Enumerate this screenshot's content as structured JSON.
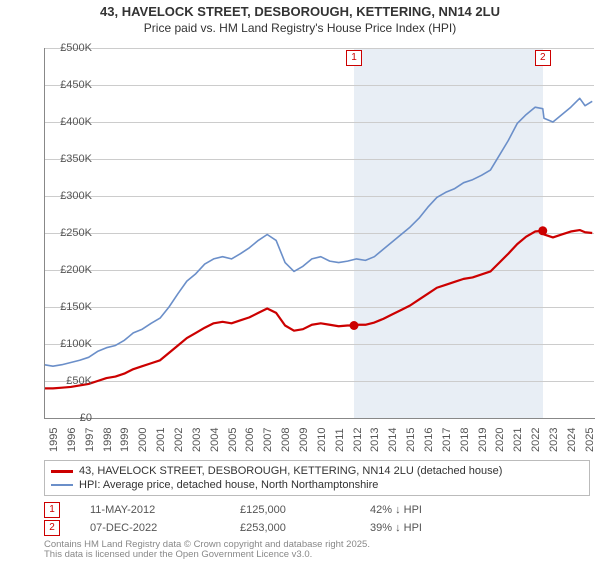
{
  "title_line1": "43, HAVELOCK STREET, DESBOROUGH, KETTERING, NN14 2LU",
  "title_line2": "Price paid vs. HM Land Registry's House Price Index (HPI)",
  "chart": {
    "type": "line",
    "background_color": "#ffffff",
    "shaded_region_color": "#e8eef5",
    "grid_color": "#cccccc",
    "axis_color": "#888888",
    "xlim": [
      1995,
      2025.8
    ],
    "ylim": [
      0,
      500000
    ],
    "ytick_step": 50000,
    "ylabels": [
      "£0",
      "£50K",
      "£100K",
      "£150K",
      "£200K",
      "£250K",
      "£300K",
      "£350K",
      "£400K",
      "£450K",
      "£500K"
    ],
    "xlabels": [
      "1995",
      "1996",
      "1997",
      "1998",
      "1999",
      "2000",
      "2001",
      "2002",
      "2003",
      "2004",
      "2005",
      "2006",
      "2007",
      "2008",
      "2009",
      "2010",
      "2011",
      "2012",
      "2013",
      "2014",
      "2015",
      "2016",
      "2017",
      "2018",
      "2019",
      "2020",
      "2021",
      "2022",
      "2023",
      "2024",
      "2025"
    ],
    "shaded_start_year": 2012.36,
    "shaded_end_year": 2022.93,
    "series": {
      "hpi": {
        "color": "#6b8fc9",
        "width": 1.6,
        "legend": "HPI: Average price, detached house, North Northamptonshire",
        "points": [
          [
            1995,
            72000
          ],
          [
            1995.5,
            70000
          ],
          [
            1996,
            72000
          ],
          [
            1996.5,
            75000
          ],
          [
            1997,
            78000
          ],
          [
            1997.5,
            82000
          ],
          [
            1998,
            90000
          ],
          [
            1998.5,
            95000
          ],
          [
            1999,
            98000
          ],
          [
            1999.5,
            105000
          ],
          [
            2000,
            115000
          ],
          [
            2000.5,
            120000
          ],
          [
            2001,
            128000
          ],
          [
            2001.5,
            135000
          ],
          [
            2002,
            150000
          ],
          [
            2002.5,
            168000
          ],
          [
            2003,
            185000
          ],
          [
            2003.5,
            195000
          ],
          [
            2004,
            208000
          ],
          [
            2004.5,
            215000
          ],
          [
            2005,
            218000
          ],
          [
            2005.5,
            215000
          ],
          [
            2006,
            222000
          ],
          [
            2006.5,
            230000
          ],
          [
            2007,
            240000
          ],
          [
            2007.5,
            248000
          ],
          [
            2008,
            240000
          ],
          [
            2008.5,
            210000
          ],
          [
            2009,
            198000
          ],
          [
            2009.5,
            205000
          ],
          [
            2010,
            215000
          ],
          [
            2010.5,
            218000
          ],
          [
            2011,
            212000
          ],
          [
            2011.5,
            210000
          ],
          [
            2012,
            212000
          ],
          [
            2012.5,
            215000
          ],
          [
            2013,
            213000
          ],
          [
            2013.5,
            218000
          ],
          [
            2014,
            228000
          ],
          [
            2014.5,
            238000
          ],
          [
            2015,
            248000
          ],
          [
            2015.5,
            258000
          ],
          [
            2016,
            270000
          ],
          [
            2016.5,
            285000
          ],
          [
            2017,
            298000
          ],
          [
            2017.5,
            305000
          ],
          [
            2018,
            310000
          ],
          [
            2018.5,
            318000
          ],
          [
            2019,
            322000
          ],
          [
            2019.5,
            328000
          ],
          [
            2020,
            335000
          ],
          [
            2020.5,
            355000
          ],
          [
            2021,
            375000
          ],
          [
            2021.5,
            398000
          ],
          [
            2022,
            410000
          ],
          [
            2022.5,
            420000
          ],
          [
            2022.93,
            418000
          ],
          [
            2023,
            405000
          ],
          [
            2023.5,
            400000
          ],
          [
            2024,
            410000
          ],
          [
            2024.5,
            420000
          ],
          [
            2025,
            432000
          ],
          [
            2025.3,
            422000
          ],
          [
            2025.7,
            428000
          ]
        ]
      },
      "price_paid": {
        "color": "#cc0000",
        "width": 2.2,
        "legend": "43, HAVELOCK STREET, DESBOROUGH, KETTERING, NN14 2LU (detached house)",
        "points": [
          [
            1995,
            40000
          ],
          [
            1995.5,
            40000
          ],
          [
            1996,
            41000
          ],
          [
            1996.5,
            42000
          ],
          [
            1997,
            44000
          ],
          [
            1997.5,
            46000
          ],
          [
            1998,
            50000
          ],
          [
            1998.5,
            54000
          ],
          [
            1999,
            56000
          ],
          [
            1999.5,
            60000
          ],
          [
            2000,
            66000
          ],
          [
            2000.5,
            70000
          ],
          [
            2001,
            74000
          ],
          [
            2001.5,
            78000
          ],
          [
            2002,
            88000
          ],
          [
            2002.5,
            98000
          ],
          [
            2003,
            108000
          ],
          [
            2003.5,
            115000
          ],
          [
            2004,
            122000
          ],
          [
            2004.5,
            128000
          ],
          [
            2005,
            130000
          ],
          [
            2005.5,
            128000
          ],
          [
            2006,
            132000
          ],
          [
            2006.5,
            136000
          ],
          [
            2007,
            142000
          ],
          [
            2007.5,
            148000
          ],
          [
            2008,
            142000
          ],
          [
            2008.5,
            125000
          ],
          [
            2009,
            118000
          ],
          [
            2009.5,
            120000
          ],
          [
            2010,
            126000
          ],
          [
            2010.5,
            128000
          ],
          [
            2011,
            126000
          ],
          [
            2011.5,
            124000
          ],
          [
            2012,
            125000
          ],
          [
            2012.36,
            125000
          ],
          [
            2012.5,
            126000
          ],
          [
            2013,
            126000
          ],
          [
            2013.5,
            129000
          ],
          [
            2014,
            134000
          ],
          [
            2014.5,
            140000
          ],
          [
            2015,
            146000
          ],
          [
            2015.5,
            152000
          ],
          [
            2016,
            160000
          ],
          [
            2016.5,
            168000
          ],
          [
            2017,
            176000
          ],
          [
            2017.5,
            180000
          ],
          [
            2018,
            184000
          ],
          [
            2018.5,
            188000
          ],
          [
            2019,
            190000
          ],
          [
            2019.5,
            194000
          ],
          [
            2020,
            198000
          ],
          [
            2020.5,
            210000
          ],
          [
            2021,
            222000
          ],
          [
            2021.5,
            235000
          ],
          [
            2022,
            245000
          ],
          [
            2022.5,
            252000
          ],
          [
            2022.93,
            253000
          ],
          [
            2023,
            248000
          ],
          [
            2023.5,
            244000
          ],
          [
            2024,
            248000
          ],
          [
            2024.5,
            252000
          ],
          [
            2025,
            254000
          ],
          [
            2025.3,
            251000
          ],
          [
            2025.7,
            250000
          ]
        ]
      }
    },
    "sale_markers": [
      {
        "num": "1",
        "year": 2012.36,
        "price": 125000
      },
      {
        "num": "2",
        "year": 2022.93,
        "price": 253000
      }
    ]
  },
  "data_rows": [
    {
      "num": "1",
      "date": "11-MAY-2012",
      "price": "£125,000",
      "pct": "42% ↓ HPI"
    },
    {
      "num": "2",
      "date": "07-DEC-2022",
      "price": "£253,000",
      "pct": "39% ↓ HPI"
    }
  ],
  "footer_line1": "Contains HM Land Registry data © Crown copyright and database right 2025.",
  "footer_line2": "This data is licensed under the Open Government Licence v3.0."
}
